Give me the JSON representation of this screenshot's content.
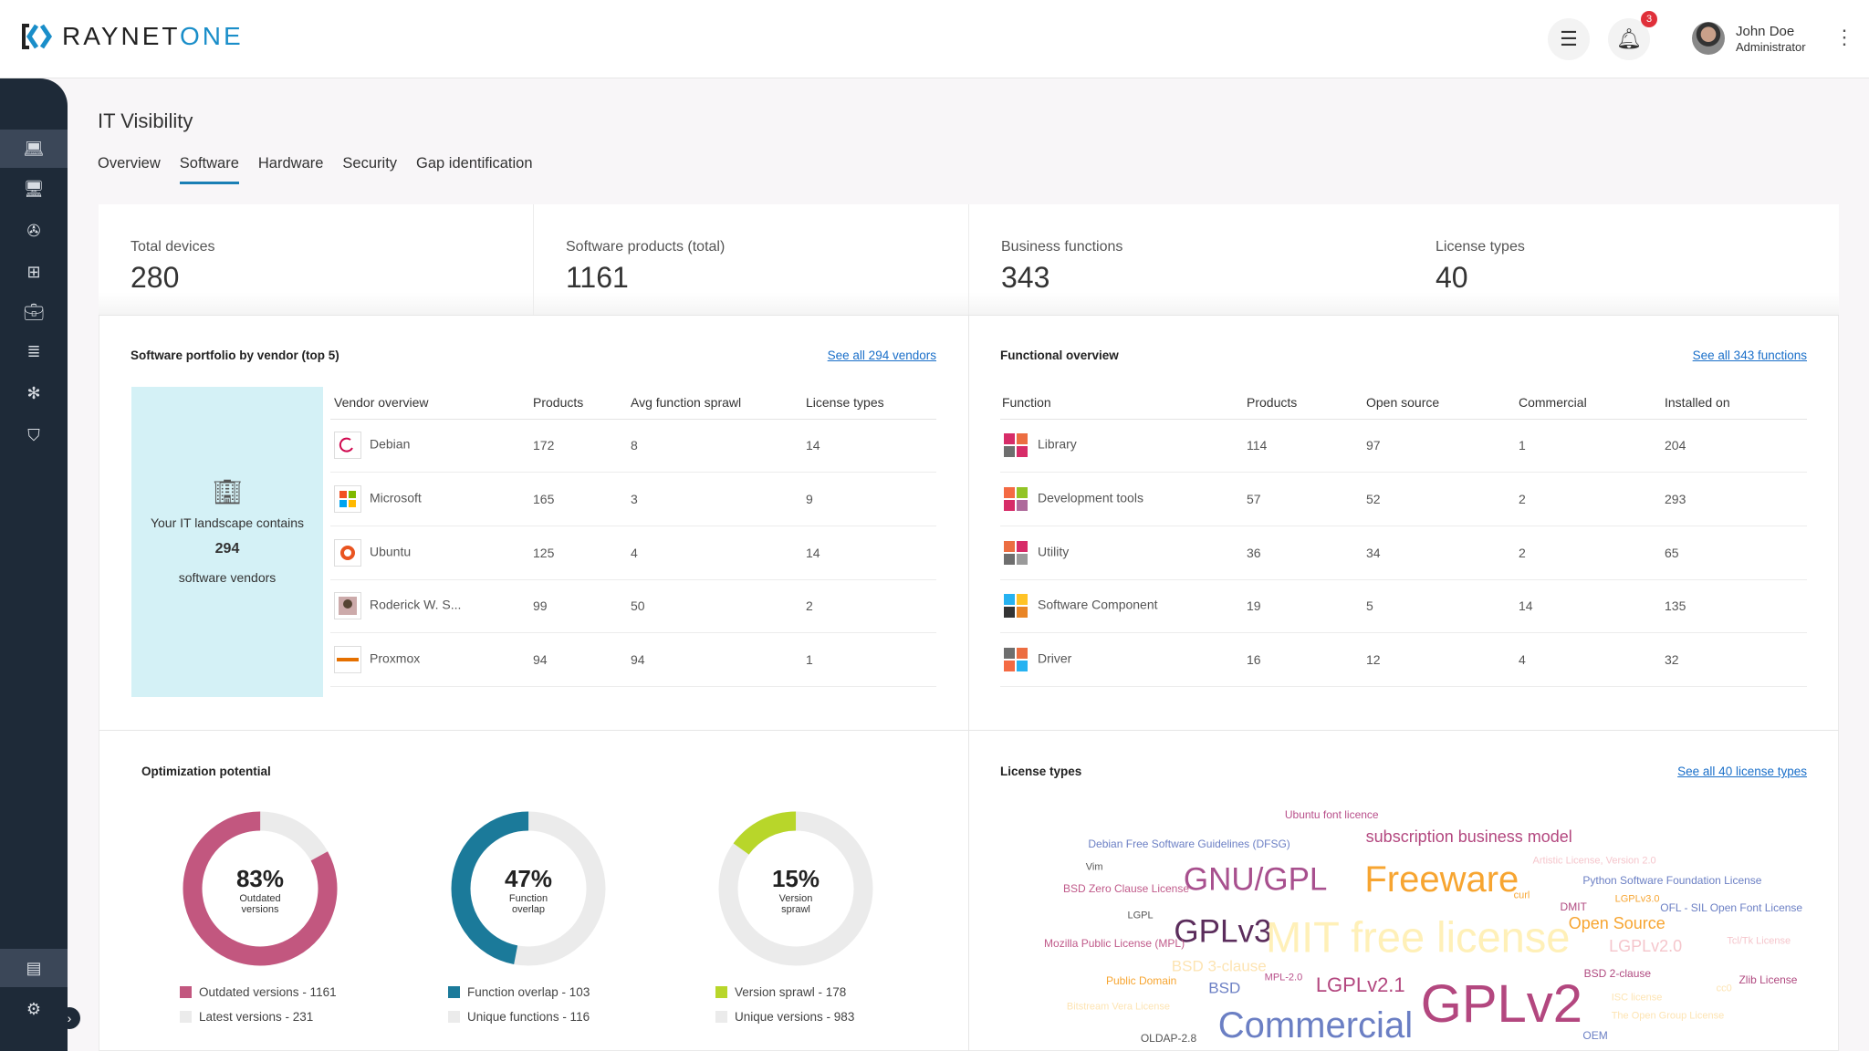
{
  "header": {
    "logo": {
      "prefix": "RAYNET",
      "suffix": "ONE"
    },
    "notifications_count": "3",
    "user": {
      "name": "John Doe",
      "role": "Administrator"
    },
    "icons": [
      "list-icon",
      "bell-icon",
      "more-vertical-icon"
    ]
  },
  "sidebar": {
    "items": [
      "laptop-icon",
      "monitor-icon",
      "network-icon",
      "apps-icon",
      "briefcase-icon",
      "database-icon",
      "snowflake-icon",
      "shield-icon"
    ],
    "bottom": [
      "inventory-icon",
      "gear-icon"
    ]
  },
  "page": {
    "title": "IT Visibility",
    "tabs": [
      {
        "label": "Overview"
      },
      {
        "label": "Software",
        "active": true
      },
      {
        "label": "Hardware"
      },
      {
        "label": "Security"
      },
      {
        "label": "Gap identification"
      }
    ]
  },
  "stats": [
    {
      "label": "Total devices",
      "value": "280"
    },
    {
      "label": "Software products (total)",
      "value": "1161"
    },
    {
      "label": "Business functions",
      "value": "343"
    },
    {
      "label": "License types",
      "value": "40"
    }
  ],
  "vendors": {
    "title": "Software portfolio by vendor (top 5)",
    "link": "See all 294 vendors",
    "summary": {
      "line1": "Your IT landscape contains",
      "count": "294",
      "line2": "software vendors"
    },
    "columns": [
      "Vendor overview",
      "Products",
      "Avg function sprawl",
      "License types"
    ],
    "rows": [
      [
        "Debian",
        "172",
        "8",
        "14"
      ],
      [
        "Microsoft",
        "165",
        "3",
        "9"
      ],
      [
        "Ubuntu",
        "125",
        "4",
        "14"
      ],
      [
        "Roderick W. S...",
        "99",
        "50",
        "2"
      ],
      [
        "Proxmox",
        "94",
        "94",
        "1"
      ]
    ]
  },
  "functions": {
    "title": "Functional overview",
    "link": "See all 343 functions",
    "columns": [
      "Function",
      "Products",
      "Open source",
      "Commercial",
      "Installed on"
    ],
    "rows": [
      [
        "Library",
        "114",
        "97",
        "1",
        "204"
      ],
      [
        "Development tools",
        "57",
        "52",
        "2",
        "293"
      ],
      [
        "Utility",
        "36",
        "34",
        "2",
        "65"
      ],
      [
        "Software Component",
        "19",
        "5",
        "14",
        "135"
      ],
      [
        "Driver",
        "16",
        "12",
        "4",
        "32"
      ]
    ]
  },
  "optimization": {
    "title": "Optimization potential",
    "donuts": [
      {
        "percent": 83,
        "label": "83%",
        "sub1": "Outdated",
        "sub2": "versions",
        "color": "#c2577f",
        "legend": [
          "Outdated versions - 1161",
          "Latest versions - 231"
        ]
      },
      {
        "percent": 47,
        "label": "47%",
        "sub1": "Function",
        "sub2": "overlap",
        "color": "#1b7a9a",
        "legend": [
          "Function overlap - 103",
          "Unique functions - 116"
        ]
      },
      {
        "percent": 15,
        "label": "15%",
        "sub1": "Version",
        "sub2": "sprawl",
        "color": "#b8d62a",
        "legend": [
          "Version sprawl - 178",
          "Unique versions - 983"
        ]
      }
    ]
  },
  "license_cloud": {
    "title": "License types",
    "link": "See all 40 license types",
    "words": [
      {
        "text": "Ubuntu font licence",
        "color": "#b84f8a"
      },
      {
        "text": "Debian Free Software Guidelines (DFSG)",
        "color": "#6b7fc4"
      },
      {
        "text": "subscription business model",
        "color": "#b3477f"
      },
      {
        "text": "Artistic License, Version 2.0",
        "color": "#f5c6cc"
      },
      {
        "text": "Vim",
        "color": "#555555"
      },
      {
        "text": "GNU/GPL",
        "color": "#a8508e"
      },
      {
        "text": "Freeware",
        "color": "#f7a531"
      },
      {
        "text": "Python Software Foundation License",
        "color": "#6b7fc4"
      },
      {
        "text": "BSD Zero Clause License",
        "color": "#c05a8a"
      },
      {
        "text": "curl",
        "color": "#f7a531"
      },
      {
        "text": "LGPLv3.0",
        "color": "#f7a531"
      },
      {
        "text": "DMIT",
        "color": "#b04a80"
      },
      {
        "text": "OFL - SIL Open Font License",
        "color": "#6b7fc4"
      },
      {
        "text": "LGPL",
        "color": "#555555"
      },
      {
        "text": "GPLv3",
        "color": "#5b2d5c"
      },
      {
        "text": "MIT free license",
        "color": "#fff0b8"
      },
      {
        "text": "Open Source",
        "color": "#f7a531"
      },
      {
        "text": "Mozilla Public License (MPL)",
        "color": "#c05a8a"
      },
      {
        "text": "LGPLv2.0",
        "color": "#f5c6cc"
      },
      {
        "text": "Tcl/Tk License",
        "color": "#f5c6cc"
      },
      {
        "text": "BSD 3-clause",
        "color": "#fde4b3"
      },
      {
        "text": "BSD 2-clause",
        "color": "#b04a80"
      },
      {
        "text": "Public Domain",
        "color": "#f7a531"
      },
      {
        "text": "MPL-2.0",
        "color": "#b84f8a"
      },
      {
        "text": "BSD",
        "color": "#6b7fc4"
      },
      {
        "text": "LGPLv2.1",
        "color": "#b3477f"
      },
      {
        "text": "GPLv2",
        "color": "#b3477f"
      },
      {
        "text": "Zlib License",
        "color": "#b04a80"
      },
      {
        "text": "cc0",
        "color": "#fde4b3"
      },
      {
        "text": "ISC license",
        "color": "#fde4b3"
      },
      {
        "text": "Bitstream Vera License",
        "color": "#fde4b3"
      },
      {
        "text": "The Open Group License",
        "color": "#fde4b3"
      },
      {
        "text": "Commercial",
        "color": "#6b7fc4"
      },
      {
        "text": "OEM",
        "color": "#6b7fc4"
      },
      {
        "text": "OLDAP-2.8",
        "color": "#555555"
      }
    ]
  }
}
